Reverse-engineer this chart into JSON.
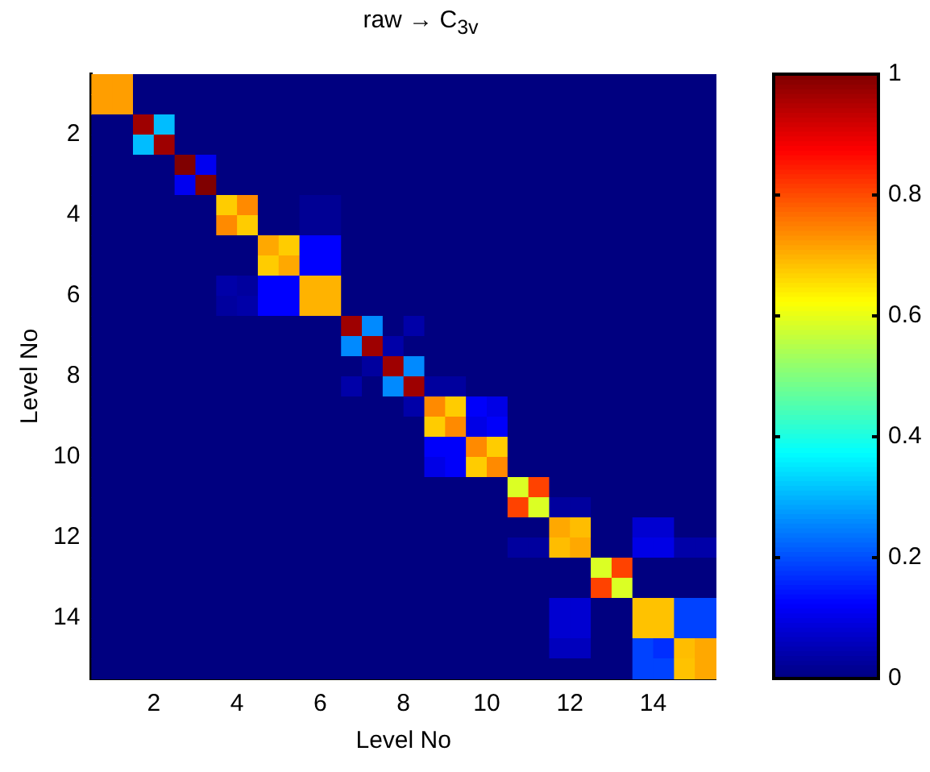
{
  "chart_data": {
    "type": "heatmap",
    "title": "raw → C$_{3v}$",
    "xlabel": "Level No",
    "ylabel": "Level No",
    "x": [
      0.75,
      1.25,
      1.75,
      2.25,
      2.75,
      3.25,
      3.75,
      4.25,
      4.75,
      5.25,
      5.75,
      6.25,
      6.75,
      7.25,
      7.75,
      8.25,
      8.75,
      9.25,
      9.75,
      10.25,
      10.75,
      11.25,
      11.75,
      12.25,
      12.75,
      13.25,
      13.75,
      14.25,
      14.75,
      15.25
    ],
    "y": [
      0.75,
      1.25,
      1.75,
      2.25,
      2.75,
      3.25,
      3.75,
      4.25,
      4.75,
      5.25,
      5.75,
      6.25,
      6.75,
      7.25,
      7.75,
      8.25,
      8.75,
      9.25,
      9.75,
      10.25,
      10.75,
      11.25,
      11.75,
      12.25,
      12.75,
      13.25,
      13.75,
      14.25,
      14.75,
      15.25
    ],
    "xlim": [
      0.5,
      15.5
    ],
    "xticks": [
      2,
      4,
      6,
      8,
      10,
      12,
      14
    ],
    "ylim": [
      15.5,
      0.5
    ],
    "yticks": [
      2,
      4,
      6,
      8,
      10,
      12,
      14
    ],
    "clim": [
      0,
      1
    ],
    "cticks": [
      0,
      0.2,
      0.4,
      0.6,
      0.8,
      1
    ],
    "cells": [
      [
        0.72,
        0.72,
        0,
        0,
        0,
        0,
        0,
        0,
        0,
        0,
        0,
        0,
        0,
        0,
        0,
        0,
        0,
        0,
        0,
        0,
        0,
        0,
        0,
        0,
        0,
        0,
        0,
        0,
        0,
        0
      ],
      [
        0.72,
        0.72,
        0,
        0,
        0,
        0,
        0,
        0,
        0,
        0,
        0,
        0,
        0,
        0,
        0,
        0,
        0,
        0,
        0,
        0,
        0,
        0,
        0,
        0,
        0,
        0,
        0,
        0,
        0,
        0
      ],
      [
        0,
        0,
        0.97,
        0.31,
        0,
        0,
        0,
        0,
        0,
        0,
        0,
        0,
        0,
        0,
        0,
        0,
        0,
        0,
        0,
        0,
        0,
        0,
        0,
        0,
        0,
        0,
        0,
        0,
        0,
        0
      ],
      [
        0,
        0,
        0.31,
        0.97,
        0,
        0,
        0,
        0,
        0,
        0,
        0,
        0,
        0,
        0,
        0,
        0,
        0,
        0,
        0,
        0,
        0,
        0,
        0,
        0,
        0,
        0,
        0,
        0,
        0,
        0
      ],
      [
        0,
        0,
        0,
        0,
        1,
        0.11,
        0,
        0,
        0,
        0,
        0,
        0,
        0,
        0,
        0,
        0,
        0,
        0,
        0,
        0,
        0,
        0,
        0,
        0,
        0,
        0,
        0,
        0,
        0,
        0
      ],
      [
        0,
        0,
        0,
        0,
        0.11,
        1,
        0,
        0,
        0,
        0,
        0,
        0,
        0,
        0,
        0,
        0,
        0,
        0,
        0,
        0,
        0,
        0,
        0,
        0,
        0,
        0,
        0,
        0,
        0,
        0
      ],
      [
        0,
        0,
        0,
        0,
        0,
        0,
        0.675,
        0.74,
        0,
        0,
        0.02,
        0.02,
        0,
        0,
        0,
        0,
        0,
        0,
        0,
        0,
        0,
        0,
        0,
        0,
        0,
        0,
        0,
        0,
        0,
        0
      ],
      [
        0,
        0,
        0,
        0,
        0,
        0,
        0.74,
        0.675,
        0,
        0,
        0.02,
        0.02,
        0,
        0,
        0,
        0,
        0,
        0,
        0,
        0,
        0,
        0,
        0,
        0,
        0,
        0,
        0,
        0,
        0,
        0
      ],
      [
        0,
        0,
        0,
        0,
        0,
        0,
        0,
        0,
        0.71,
        0.675,
        0.125,
        0.125,
        0,
        0,
        0,
        0,
        0,
        0,
        0,
        0,
        0,
        0,
        0,
        0,
        0,
        0,
        0,
        0,
        0,
        0
      ],
      [
        0,
        0,
        0,
        0,
        0,
        0,
        0,
        0,
        0.675,
        0.71,
        0.125,
        0.125,
        0,
        0,
        0,
        0,
        0,
        0,
        0,
        0,
        0,
        0,
        0,
        0,
        0,
        0,
        0,
        0,
        0,
        0
      ],
      [
        0,
        0,
        0,
        0,
        0,
        0,
        0.04,
        0.03,
        0.125,
        0.125,
        0.7,
        0.7,
        0,
        0,
        0,
        0,
        0,
        0,
        0,
        0,
        0,
        0,
        0,
        0,
        0,
        0,
        0,
        0,
        0,
        0
      ],
      [
        0,
        0,
        0,
        0,
        0,
        0,
        0.03,
        0.04,
        0.125,
        0.125,
        0.7,
        0.7,
        0,
        0,
        0,
        0,
        0,
        0,
        0,
        0,
        0,
        0,
        0,
        0,
        0,
        0,
        0,
        0,
        0,
        0
      ],
      [
        0,
        0,
        0,
        0,
        0,
        0,
        0,
        0,
        0,
        0,
        0,
        0,
        0.97,
        0.26,
        0,
        0.04,
        0,
        0,
        0,
        0,
        0,
        0,
        0,
        0,
        0,
        0,
        0,
        0,
        0,
        0
      ],
      [
        0,
        0,
        0,
        0,
        0,
        0,
        0,
        0,
        0,
        0,
        0,
        0,
        0.26,
        0.97,
        0.04,
        0,
        0,
        0,
        0,
        0,
        0,
        0,
        0,
        0,
        0,
        0,
        0,
        0,
        0,
        0
      ],
      [
        0,
        0,
        0,
        0,
        0,
        0,
        0,
        0,
        0,
        0,
        0,
        0,
        0,
        0.03,
        0.97,
        0.26,
        0,
        0,
        0,
        0,
        0,
        0,
        0,
        0,
        0,
        0,
        0,
        0,
        0,
        0
      ],
      [
        0,
        0,
        0,
        0,
        0,
        0,
        0,
        0,
        0,
        0,
        0,
        0,
        0.04,
        0,
        0.26,
        0.97,
        0.03,
        0.03,
        0,
        0,
        0,
        0,
        0,
        0,
        0,
        0,
        0,
        0,
        0,
        0
      ],
      [
        0,
        0,
        0,
        0,
        0,
        0,
        0,
        0,
        0,
        0,
        0,
        0,
        0,
        0,
        0,
        0.04,
        0.74,
        0.675,
        0.12,
        0.1,
        0,
        0,
        0,
        0,
        0,
        0,
        0,
        0,
        0,
        0
      ],
      [
        0,
        0,
        0,
        0,
        0,
        0,
        0,
        0,
        0,
        0,
        0,
        0,
        0,
        0,
        0,
        0,
        0.675,
        0.74,
        0.1,
        0.12,
        0,
        0,
        0,
        0,
        0,
        0,
        0,
        0,
        0,
        0
      ],
      [
        0,
        0,
        0,
        0,
        0,
        0,
        0,
        0,
        0,
        0,
        0,
        0,
        0,
        0,
        0,
        0,
        0.12,
        0.12,
        0.74,
        0.675,
        0,
        0,
        0,
        0,
        0,
        0,
        0,
        0,
        0,
        0
      ],
      [
        0,
        0,
        0,
        0,
        0,
        0,
        0,
        0,
        0,
        0,
        0,
        0,
        0,
        0,
        0,
        0,
        0.1,
        0.12,
        0.675,
        0.74,
        0,
        0,
        0,
        0,
        0,
        0,
        0,
        0,
        0,
        0
      ],
      [
        0,
        0,
        0,
        0,
        0,
        0,
        0,
        0,
        0,
        0,
        0,
        0,
        0,
        0,
        0,
        0,
        0,
        0,
        0,
        0,
        0.59,
        0.81,
        0,
        0,
        0,
        0,
        0,
        0,
        0,
        0
      ],
      [
        0,
        0,
        0,
        0,
        0,
        0,
        0,
        0,
        0,
        0,
        0,
        0,
        0,
        0,
        0,
        0,
        0,
        0,
        0,
        0,
        0.81,
        0.59,
        0.03,
        0.03,
        0,
        0,
        0,
        0,
        0,
        0
      ],
      [
        0,
        0,
        0,
        0,
        0,
        0,
        0,
        0,
        0,
        0,
        0,
        0,
        0,
        0,
        0,
        0,
        0,
        0,
        0,
        0,
        0,
        0,
        0.71,
        0.69,
        0,
        0,
        0.08,
        0.08,
        0,
        0
      ],
      [
        0,
        0,
        0,
        0,
        0,
        0,
        0,
        0,
        0,
        0,
        0,
        0,
        0,
        0,
        0,
        0,
        0,
        0,
        0,
        0,
        0.03,
        0.03,
        0.69,
        0.71,
        0,
        0,
        0.1,
        0.1,
        0.04,
        0.04
      ],
      [
        0,
        0,
        0,
        0,
        0,
        0,
        0,
        0,
        0,
        0,
        0,
        0,
        0,
        0,
        0,
        0,
        0,
        0,
        0,
        0,
        0,
        0,
        0,
        0,
        0.59,
        0.81,
        0,
        0,
        0,
        0
      ],
      [
        0,
        0,
        0,
        0,
        0,
        0,
        0,
        0,
        0,
        0,
        0,
        0,
        0,
        0,
        0,
        0,
        0,
        0,
        0,
        0,
        0,
        0,
        0,
        0,
        0.81,
        0.59,
        0,
        0,
        0,
        0
      ],
      [
        0,
        0,
        0,
        0,
        0,
        0,
        0,
        0,
        0,
        0,
        0,
        0,
        0,
        0,
        0,
        0,
        0,
        0,
        0,
        0,
        0,
        0,
        0.08,
        0.08,
        0,
        0,
        0.685,
        0.685,
        0.19,
        0.19
      ],
      [
        0,
        0,
        0,
        0,
        0,
        0,
        0,
        0,
        0,
        0,
        0,
        0,
        0,
        0,
        0,
        0,
        0,
        0,
        0,
        0,
        0,
        0,
        0.08,
        0.08,
        0,
        0,
        0.685,
        0.685,
        0.19,
        0.19
      ],
      [
        0,
        0,
        0,
        0,
        0,
        0,
        0,
        0,
        0,
        0,
        0,
        0,
        0,
        0,
        0,
        0,
        0,
        0,
        0,
        0,
        0,
        0,
        0.06,
        0.06,
        0,
        0,
        0.19,
        0.17,
        0.69,
        0.71
      ],
      [
        0,
        0,
        0,
        0,
        0,
        0,
        0,
        0,
        0,
        0,
        0,
        0,
        0,
        0,
        0,
        0,
        0,
        0,
        0,
        0,
        0,
        0,
        0,
        0,
        0,
        0,
        0.19,
        0.19,
        0.685,
        0.71
      ]
    ]
  }
}
